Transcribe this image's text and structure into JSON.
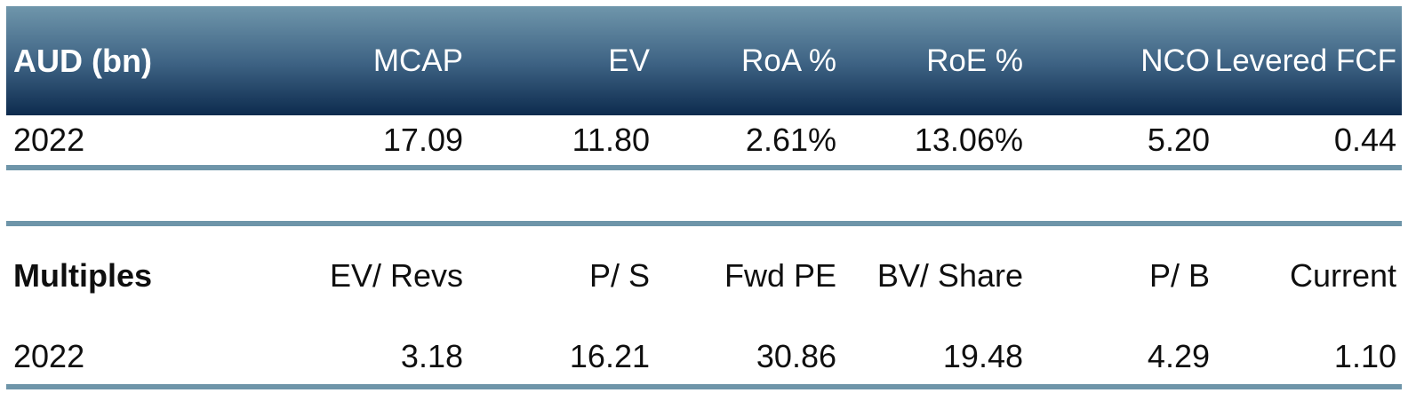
{
  "colors": {
    "header_gradient_top": "#6F96AB",
    "header_gradient_bottom": "#0D2B4E",
    "header_text": "#FFFFFF",
    "divider_rule": "#6E95A9",
    "body_text": "#0F0F0F",
    "background": "#FFFFFF"
  },
  "chart_data": [
    {
      "type": "table",
      "title": "AUD (bn)",
      "columns": [
        "AUD (bn)",
        "MCAP",
        "EV",
        "RoA %",
        "RoE %",
        "NCO",
        "Levered FCF"
      ],
      "rows": [
        [
          "2022",
          "17.09",
          "11.80",
          "2.61%",
          "13.06%",
          "5.20",
          "0.44"
        ]
      ]
    },
    {
      "type": "table",
      "title": "Multiples",
      "columns": [
        "Multiples",
        "EV/ Revs",
        "P/ S",
        "Fwd PE",
        "BV/ Share",
        "P/ B",
        "Current"
      ],
      "rows": [
        [
          "2022",
          "3.18",
          "16.21",
          "30.86",
          "19.48",
          "4.29",
          "1.10"
        ]
      ]
    }
  ]
}
